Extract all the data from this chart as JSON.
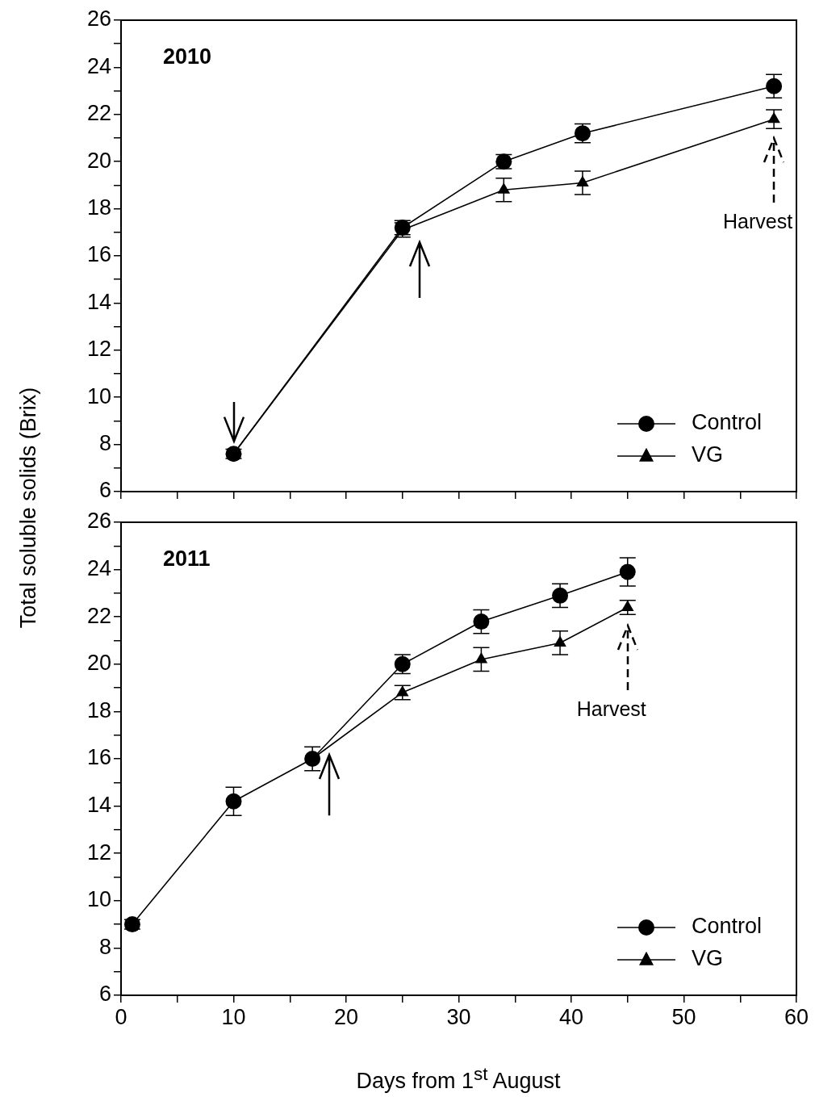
{
  "chart_data": [
    {
      "type": "line",
      "title": "2010",
      "ylabel": "Total soluble solids (Brix)",
      "x": [
        10,
        25,
        34,
        41,
        58
      ],
      "series": [
        {
          "name": "Control",
          "color": "#000000",
          "marker": "circle",
          "values": [
            7.6,
            17.2,
            20.0,
            21.2,
            23.2
          ],
          "errors": [
            0.2,
            0.3,
            0.3,
            0.4,
            0.5
          ]
        },
        {
          "name": "VG",
          "color": "#000000",
          "marker": "triangle",
          "values": [
            7.6,
            17.1,
            18.8,
            19.1,
            21.8
          ],
          "errors": [
            null,
            0.3,
            0.5,
            0.5,
            0.4
          ]
        }
      ],
      "annotations": [
        "Harvest"
      ],
      "xlim": [
        0,
        60
      ],
      "xticks": [
        0,
        {
          "value": 5,
          "label": null
        },
        10,
        {
          "value": 15,
          "label": null
        },
        20,
        {
          "value": 25,
          "label": null
        },
        30,
        {
          "value": 35,
          "label": null
        },
        40,
        {
          "value": 45,
          "label": null
        },
        50,
        {
          "value": 55,
          "label": null
        },
        60
      ],
      "ylim": [
        6,
        26
      ],
      "yticks": [
        6,
        {
          "value": 7,
          "label": null
        },
        8,
        {
          "value": 9,
          "label": null
        },
        10,
        {
          "value": 11,
          "label": null
        },
        12,
        {
          "value": 13,
          "label": null
        },
        14,
        {
          "value": 15,
          "label": null
        },
        16,
        {
          "value": 17,
          "label": null
        },
        18,
        {
          "value": 19,
          "label": null
        },
        20,
        {
          "value": 21,
          "label": null
        },
        22,
        {
          "value": 23,
          "label": null
        },
        24,
        {
          "value": 25,
          "label": null
        },
        26
      ],
      "tick_labels": "y",
      "legend": "bottom right",
      "grid": false
    },
    {
      "type": "line",
      "title": "2011",
      "xlabel": "Days from 1$^{st}$ August",
      "x": [
        1,
        10,
        17,
        25,
        32,
        39,
        45
      ],
      "series": [
        {
          "name": "Control",
          "color": "#000000",
          "marker": "circle",
          "values": [
            9.0,
            14.2,
            16.0,
            20.0,
            21.8,
            22.9,
            23.9
          ],
          "errors": [
            0.2,
            0.6,
            0.5,
            0.4,
            0.5,
            0.5,
            0.6
          ]
        },
        {
          "name": "VG",
          "color": "#000000",
          "marker": "triangle",
          "values": [
            null,
            null,
            16.0,
            18.8,
            20.2,
            20.9,
            22.4
          ],
          "errors": [
            null,
            null,
            null,
            0.3,
            0.5,
            0.5,
            0.3
          ]
        }
      ],
      "annotations": [
        "Harvest"
      ],
      "xlim": [
        0,
        60
      ],
      "xticks": [
        0,
        {
          "value": 5,
          "label": null
        },
        10,
        {
          "value": 15,
          "label": null
        },
        20,
        {
          "value": 25,
          "label": null
        },
        30,
        {
          "value": 35,
          "label": null
        },
        40,
        {
          "value": 45,
          "label": null
        },
        50,
        {
          "value": 55,
          "label": null
        },
        60
      ],
      "ylim": [
        6,
        26
      ],
      "yticks": [
        6,
        {
          "value": 7,
          "label": null
        },
        8,
        {
          "value": 9,
          "label": null
        },
        10,
        {
          "value": 11,
          "label": null
        },
        12,
        {
          "value": 13,
          "label": null
        },
        14,
        {
          "value": 15,
          "label": null
        },
        16,
        {
          "value": 17,
          "label": null
        },
        18,
        {
          "value": 19,
          "label": null
        },
        20,
        {
          "value": 21,
          "label": null
        },
        22,
        {
          "value": 23,
          "label": null
        },
        24,
        {
          "value": 25,
          "label": null
        },
        26
      ],
      "legend": "bottom right",
      "grid": false
    }
  ]
}
